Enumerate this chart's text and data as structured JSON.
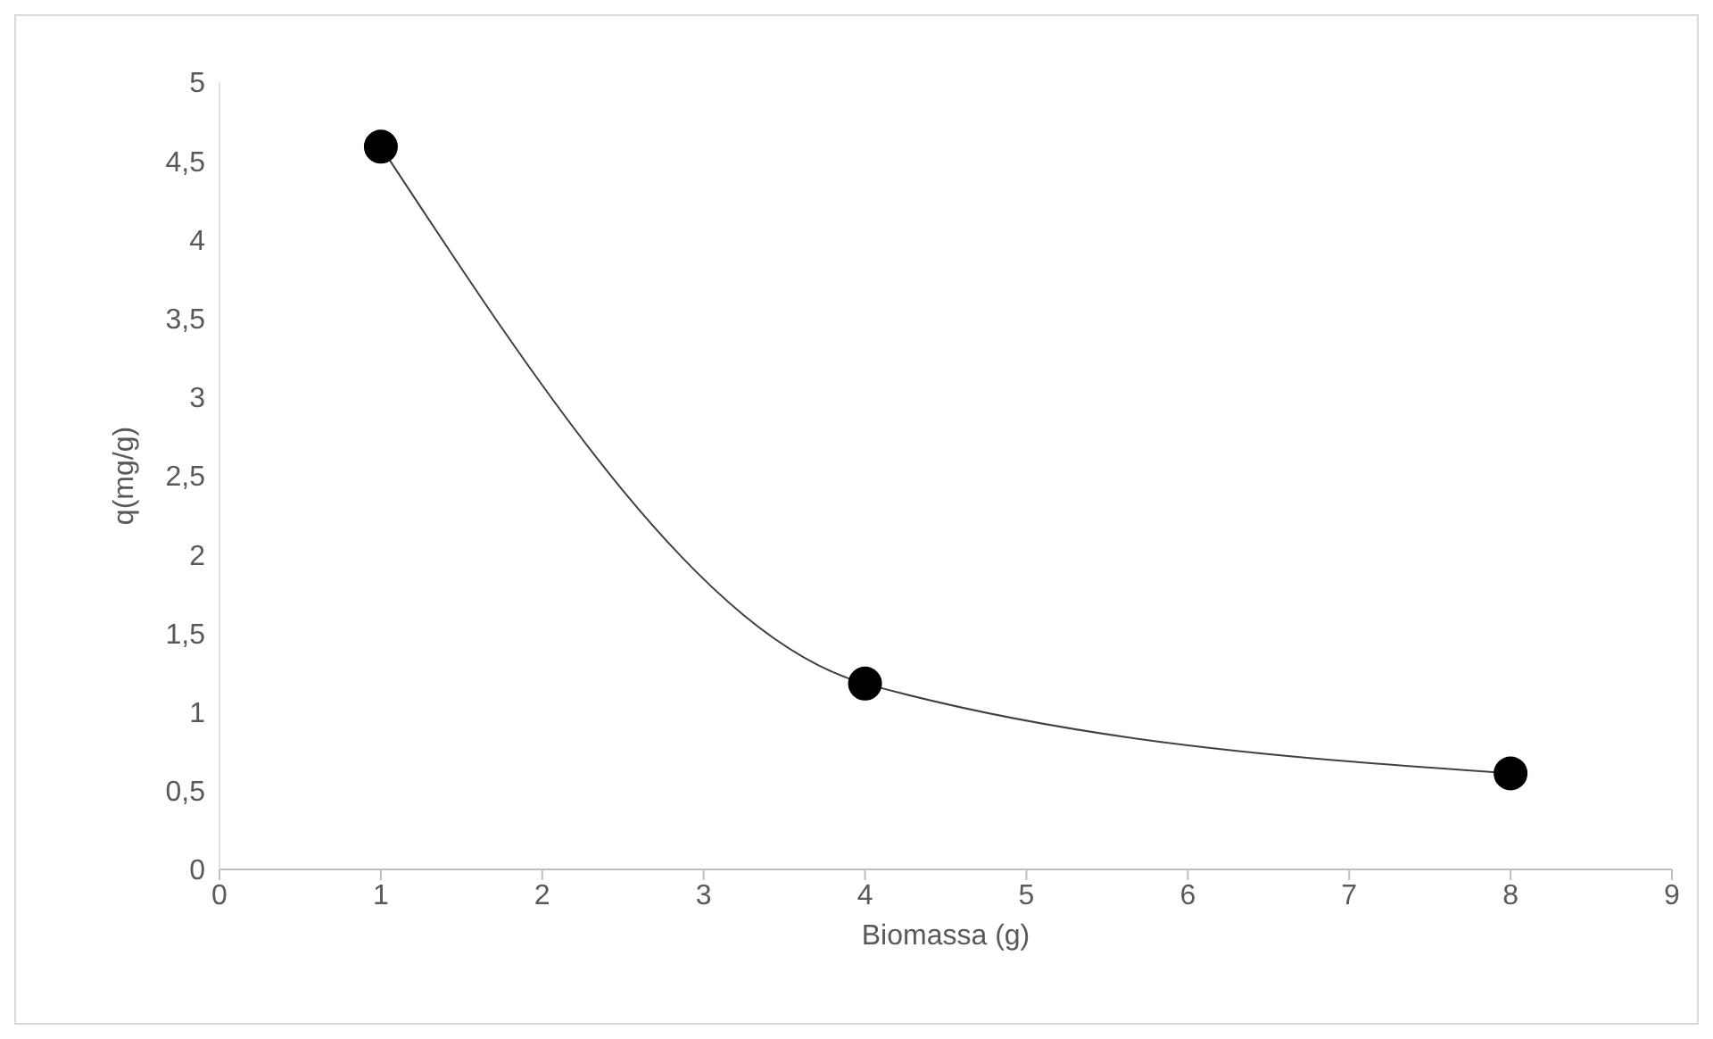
{
  "chart_data": {
    "type": "line",
    "xlabel": "Biomassa (g)",
    "ylabel": "q(mg/g)",
    "x": [
      1,
      4,
      8
    ],
    "series": [
      {
        "color": "#000000",
        "values": [
          4.59,
          1.18,
          0.61
        ]
      }
    ],
    "xlim": [
      0,
      9
    ],
    "xticks": [
      0,
      1,
      2,
      3,
      4,
      5,
      6,
      7,
      8,
      9
    ],
    "ylim": [
      0,
      5
    ],
    "yticks": [
      0,
      {
        "value": 0.5,
        "label": "0,5"
      },
      1,
      {
        "value": 1.5,
        "label": "1,5"
      },
      2,
      {
        "value": 2.5,
        "label": "2,5"
      },
      3,
      {
        "value": 3.5,
        "label": "3,5"
      },
      4,
      {
        "value": 4.5,
        "label": "4,5"
      },
      5
    ],
    "marker": "circle",
    "line_style": "solid",
    "grid": false,
    "legend": false
  }
}
